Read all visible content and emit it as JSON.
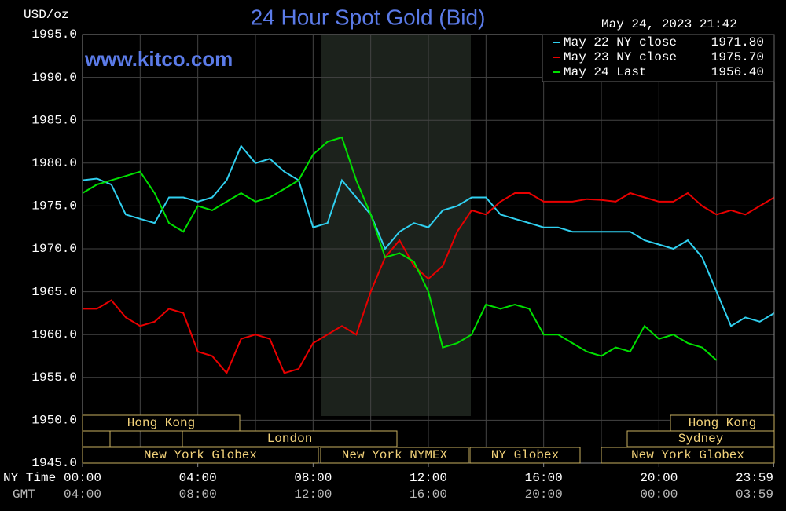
{
  "chart_data": {
    "type": "line",
    "title": "24 Hour Spot Gold (Bid)",
    "y_label": "USD/oz",
    "timestamp": "May 24, 2023 21:42",
    "watermark": "www.kitco.com",
    "x_label": "NY Time",
    "x2_label": "GMT",
    "xlim": [
      0,
      24
    ],
    "ylim": [
      1945,
      1995
    ],
    "yticks": [
      {
        "value": 1945,
        "label": "1945.0"
      },
      {
        "value": 1950,
        "label": "1950.0"
      },
      {
        "value": 1955,
        "label": "1955.0"
      },
      {
        "value": 1960,
        "label": "1960.0"
      },
      {
        "value": 1965,
        "label": "1965.0"
      },
      {
        "value": 1970,
        "label": "1970.0"
      },
      {
        "value": 1975,
        "label": "1975.0"
      },
      {
        "value": 1980,
        "label": "1980.0"
      },
      {
        "value": 1985,
        "label": "1985.0"
      },
      {
        "value": 1990,
        "label": "1990.0"
      },
      {
        "value": 1995,
        "label": "1995.0"
      }
    ],
    "xticks": [
      {
        "value": 0,
        "label": "00:00"
      },
      {
        "value": 4,
        "label": "04:00"
      },
      {
        "value": 8,
        "label": "08:00"
      },
      {
        "value": 12,
        "label": "12:00"
      },
      {
        "value": 16,
        "label": "16:00"
      },
      {
        "value": 20,
        "label": "20:00"
      },
      {
        "value": 23.983,
        "label": "23:59"
      }
    ],
    "xticks_gmt": [
      "04:00",
      "08:00",
      "12:00",
      "16:00",
      "20:00",
      "00:00",
      "03:59"
    ],
    "xgrid": [
      2,
      4,
      6,
      8,
      10,
      12,
      14,
      16,
      18,
      20,
      22
    ],
    "grid": true,
    "sessions": [
      "Hong Kong",
      "Hong Kong",
      "",
      "London",
      "Sydney",
      "New York Globex",
      "New York NYMEX",
      "NY Globex",
      "New York Globex"
    ],
    "x": [
      0,
      0.5,
      1,
      1.5,
      2,
      2.5,
      3,
      3.5,
      4,
      4.5,
      5,
      5.5,
      6,
      6.5,
      7,
      7.5,
      8,
      8.5,
      9,
      9.5,
      10,
      10.5,
      11,
      11.5,
      12,
      12.5,
      13,
      13.5,
      14,
      14.5,
      15,
      15.5,
      16,
      16.5,
      17,
      17.5,
      18,
      18.5,
      19,
      19.5,
      20,
      20.5,
      21,
      21.5,
      22,
      22.5,
      23,
      23.5,
      24
    ],
    "series": [
      {
        "name": "May 22 NY close",
        "legend_value": "1971.80",
        "color": "#30d0f0",
        "values": [
          1978,
          1978.2,
          1977.5,
          1974,
          1973.5,
          1973,
          1976,
          1976,
          1975.5,
          1976,
          1978,
          1982,
          1980,
          1980.5,
          1979,
          1978,
          1972.5,
          1973,
          1978,
          1976,
          1974,
          1970,
          1972,
          1973,
          1972.5,
          1974.5,
          1975,
          1976,
          1976,
          1974,
          1973.5,
          1973,
          1972.5,
          1972.5,
          1972,
          1972,
          1972,
          1972,
          1972,
          1971,
          1970.5,
          1970,
          1971,
          1969,
          1965,
          1961,
          1962,
          1961.5,
          1962.5
        ]
      },
      {
        "name": "May 23 NY close",
        "legend_value": "1975.70",
        "color": "#e80000",
        "values": [
          1963,
          1963,
          1964,
          1962,
          1961,
          1961.5,
          1963,
          1962.5,
          1958,
          1957.5,
          1955.5,
          1959.5,
          1960,
          1959.5,
          1955.5,
          1956,
          1959,
          1960,
          1961,
          1960,
          1965,
          1969,
          1971,
          1968,
          1966.5,
          1968,
          1972,
          1974.5,
          1974,
          1975.5,
          1976.5,
          1976.5,
          1975.5,
          1975.5,
          1975.5,
          1975.8,
          1975.7,
          1975.5,
          1976.5,
          1976,
          1975.5,
          1975.5,
          1976.5,
          1975,
          1974,
          1974.5,
          1974,
          1975,
          1976
        ]
      },
      {
        "name": "May 24 Last",
        "legend_value": "1956.40",
        "color": "#00e000",
        "values": [
          1976.5,
          1977.5,
          1978,
          1978.5,
          1979,
          1976.5,
          1973,
          1972,
          1975,
          1974.5,
          1975.5,
          1976.5,
          1975.5,
          1976,
          1977,
          1978,
          1981,
          1982.5,
          1983,
          1978,
          1974,
          1969,
          1969.5,
          1968.5,
          1965,
          1958.5,
          1959,
          1960,
          1963.5,
          1963,
          1963.5,
          1963,
          1960,
          1960,
          1959,
          1958,
          1957.5,
          1958.5,
          1958,
          1961,
          1959.5,
          1960,
          1959,
          1958.5,
          1957,
          null,
          null,
          null,
          null
        ]
      }
    ]
  }
}
